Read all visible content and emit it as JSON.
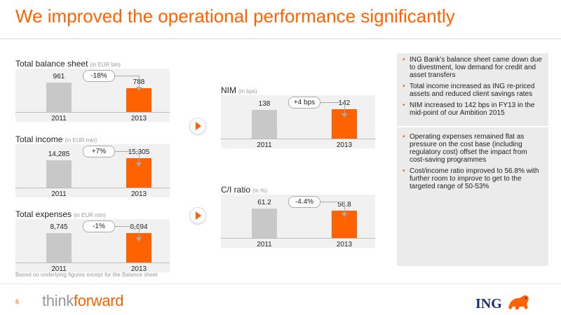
{
  "slide": {
    "title": "We improved the operational performance significantly",
    "footnote": "Based on underlying figures except for the Balance sheet",
    "page_number": "6",
    "brand_think": "think",
    "brand_forward": "forward",
    "bank_logo": "ING"
  },
  "colors": {
    "accent": "#FF6200",
    "gray_bar": "#c8c8c8",
    "panel": "#ebebeb",
    "logo_blue": "#1b2f6f"
  },
  "chart_data": [
    {
      "type": "bar",
      "title": "Total balance sheet",
      "unit": "(in EUR bln)",
      "categories": [
        "2011",
        "2013"
      ],
      "values": [
        961,
        788
      ],
      "labels": [
        "961",
        "788"
      ],
      "change": "-18%"
    },
    {
      "type": "bar",
      "title": "Total income",
      "unit": "(in EUR mln)",
      "categories": [
        "2011",
        "2013"
      ],
      "values": [
        14285,
        15305
      ],
      "labels": [
        "14,285",
        "15,305"
      ],
      "change": "+7%"
    },
    {
      "type": "bar",
      "title": "Total expenses",
      "unit": "(in EUR mln)",
      "categories": [
        "2011",
        "2013"
      ],
      "values": [
        8745,
        8694
      ],
      "labels": [
        "8,745",
        "8,694"
      ],
      "change": "-1%"
    },
    {
      "type": "bar",
      "title": "NIM",
      "unit": "(in bps)",
      "categories": [
        "2011",
        "2013"
      ],
      "values": [
        138,
        142
      ],
      "labels": [
        "138",
        "142"
      ],
      "change": "+4 bps"
    },
    {
      "type": "bar",
      "title": "C/I ratio",
      "unit": "(in %)",
      "categories": [
        "2011",
        "2013"
      ],
      "values": [
        61.2,
        56.8
      ],
      "labels": [
        "61.2",
        "56.8"
      ],
      "change": "-4.4%"
    }
  ],
  "bullets_top": [
    "ING Bank’s balance sheet came down due to divestment, low demand for credit and asset transfers",
    "Total income increased as ING re-priced assets and reduced client savings rates",
    "NIM increased to 142 bps in FY13 in the mid-point of our Ambition 2015"
  ],
  "bullets_bottom": [
    "Operating expenses remained flat as pressure on the cost base (including regulatory cost) offset the impact from cost-saving programmes",
    "Cost/income ratio improved to 56.8% with further room to improve to get to the targeted range of 50-53%"
  ],
  "icons": {
    "arrow": "play-arrow-icon"
  }
}
